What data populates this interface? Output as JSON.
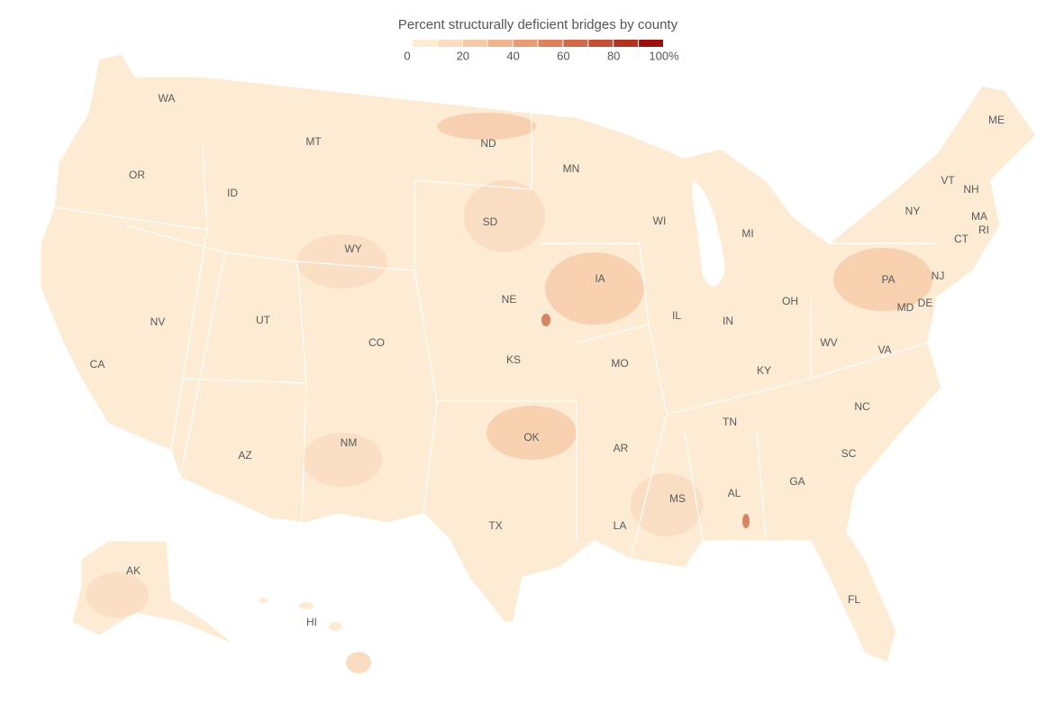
{
  "legend": {
    "title": "Percent structurally deficient bridges by county",
    "bins": [
      0,
      10,
      20,
      30,
      40,
      50,
      60,
      70,
      80,
      90,
      100
    ],
    "colors": [
      "#fdebd3",
      "#f9dcc1",
      "#f5caa8",
      "#efb48d",
      "#e89c74",
      "#de825c",
      "#d26a48",
      "#c44f34",
      "#b33222",
      "#a00d0d"
    ],
    "ticks": [
      0,
      20,
      40,
      60,
      80,
      {
        "value": 100,
        "label": "100%"
      }
    ]
  },
  "states": [
    "WA",
    "OR",
    "CA",
    "NV",
    "ID",
    "MT",
    "WY",
    "UT",
    "AZ",
    "CO",
    "NM",
    "ND",
    "SD",
    "NE",
    "KS",
    "OK",
    "TX",
    "MN",
    "IA",
    "MO",
    "AR",
    "LA",
    "WI",
    "IL",
    "MS",
    "MI",
    "IN",
    "KY",
    "TN",
    "AL",
    "GA",
    "OH",
    "WV",
    "VA",
    "NC",
    "SC",
    "FL",
    "PA",
    "NY",
    "MD",
    "DE",
    "NJ",
    "CT",
    "RI",
    "MA",
    "VT",
    "NH",
    "ME",
    "AK",
    "HI"
  ]
}
